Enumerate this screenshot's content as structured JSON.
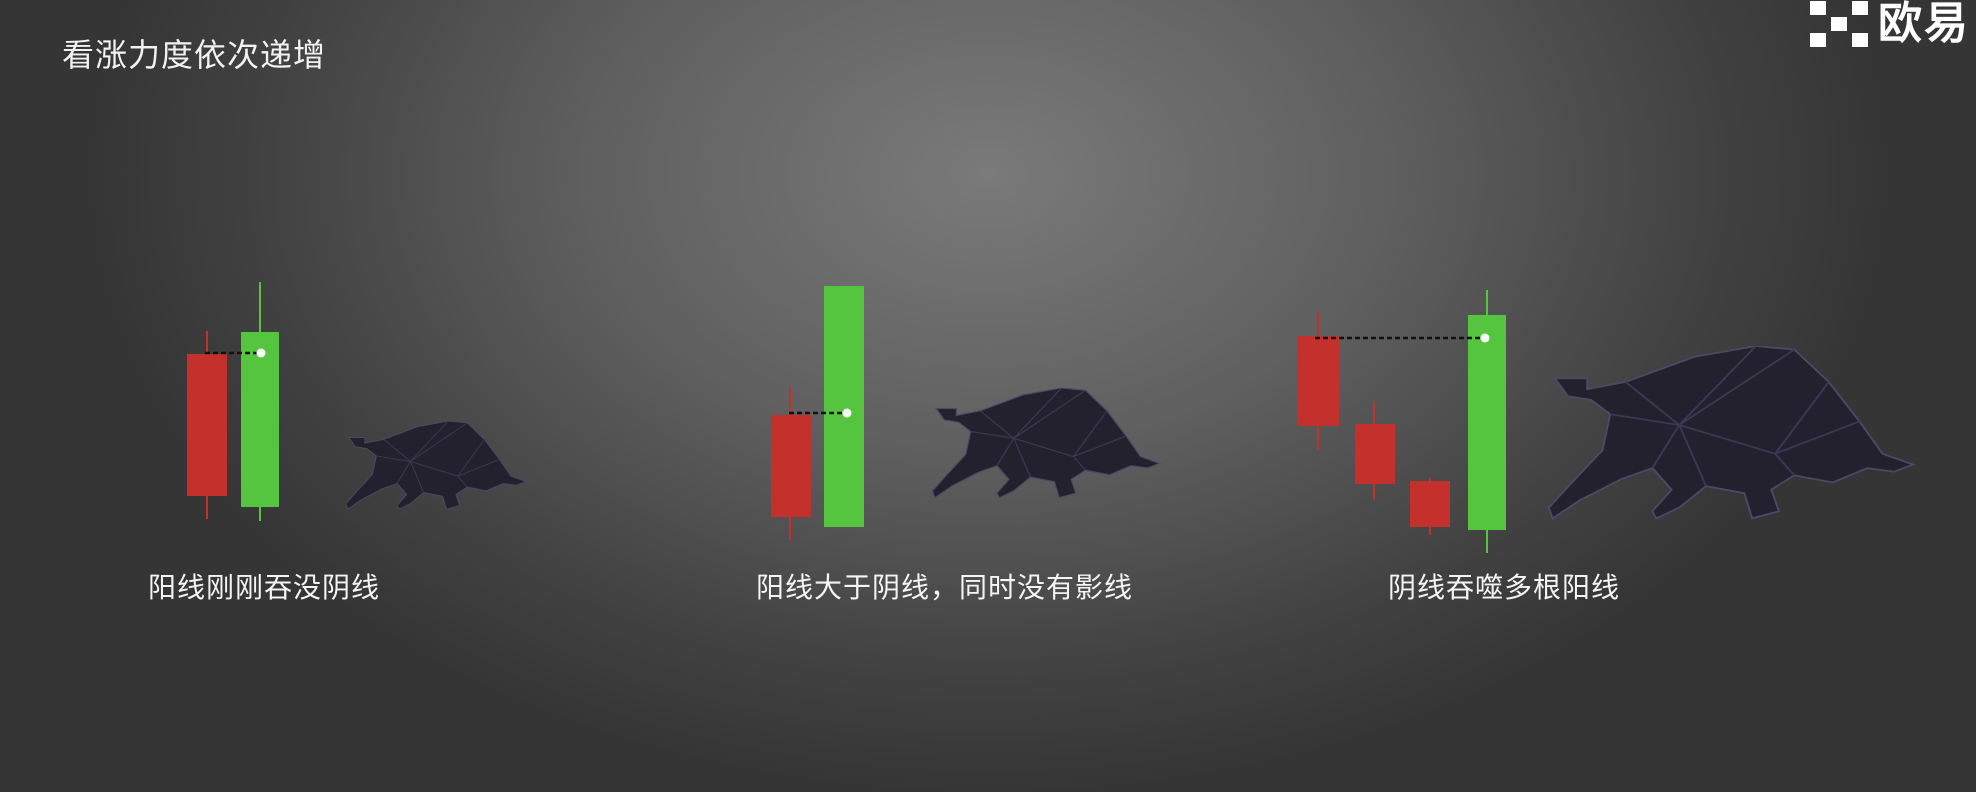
{
  "title": "看涨力度依次递增",
  "logo": {
    "text": "欧易",
    "icon": "okx-logo-icon"
  },
  "colors": {
    "bullish": "#55c43f",
    "bearish": "#c4302b",
    "bull": "#24212f"
  },
  "patterns": [
    {
      "caption": "阳线刚刚吞没阴线",
      "icon": "bull-icon"
    },
    {
      "caption": "阳线大于阴线，同时没有影线",
      "icon": "bull-icon"
    },
    {
      "caption": "阴线吞噬多根阳线",
      "icon": "bull-icon"
    }
  ]
}
